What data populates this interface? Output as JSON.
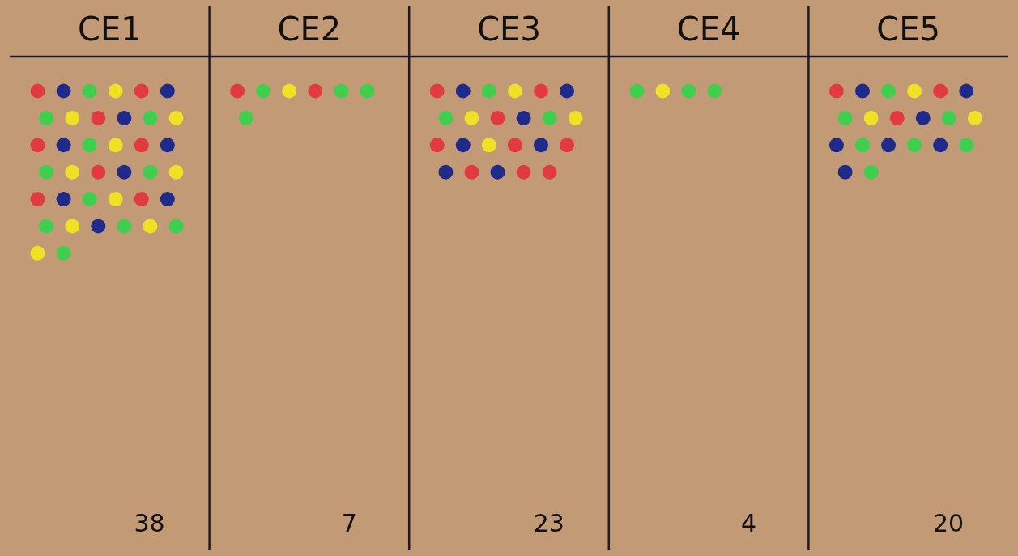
{
  "chart_data": {
    "type": "dotplot",
    "categories": [
      "CE1",
      "CE2",
      "CE3",
      "CE4",
      "CE5"
    ],
    "totals": [
      38,
      7,
      23,
      4,
      20
    ],
    "series": [
      {
        "color": "#e23b3f",
        "values": [
          8,
          2,
          9,
          0,
          3
        ]
      },
      {
        "color": "#1f2a8a",
        "values": [
          9,
          0,
          7,
          0,
          7
        ]
      },
      {
        "color": "#3fcf4f",
        "values": [
          11,
          4,
          3,
          3,
          7
        ]
      },
      {
        "color": "#f0e026",
        "values": [
          10,
          1,
          4,
          1,
          3
        ]
      }
    ],
    "tick_labels": "x"
  }
}
